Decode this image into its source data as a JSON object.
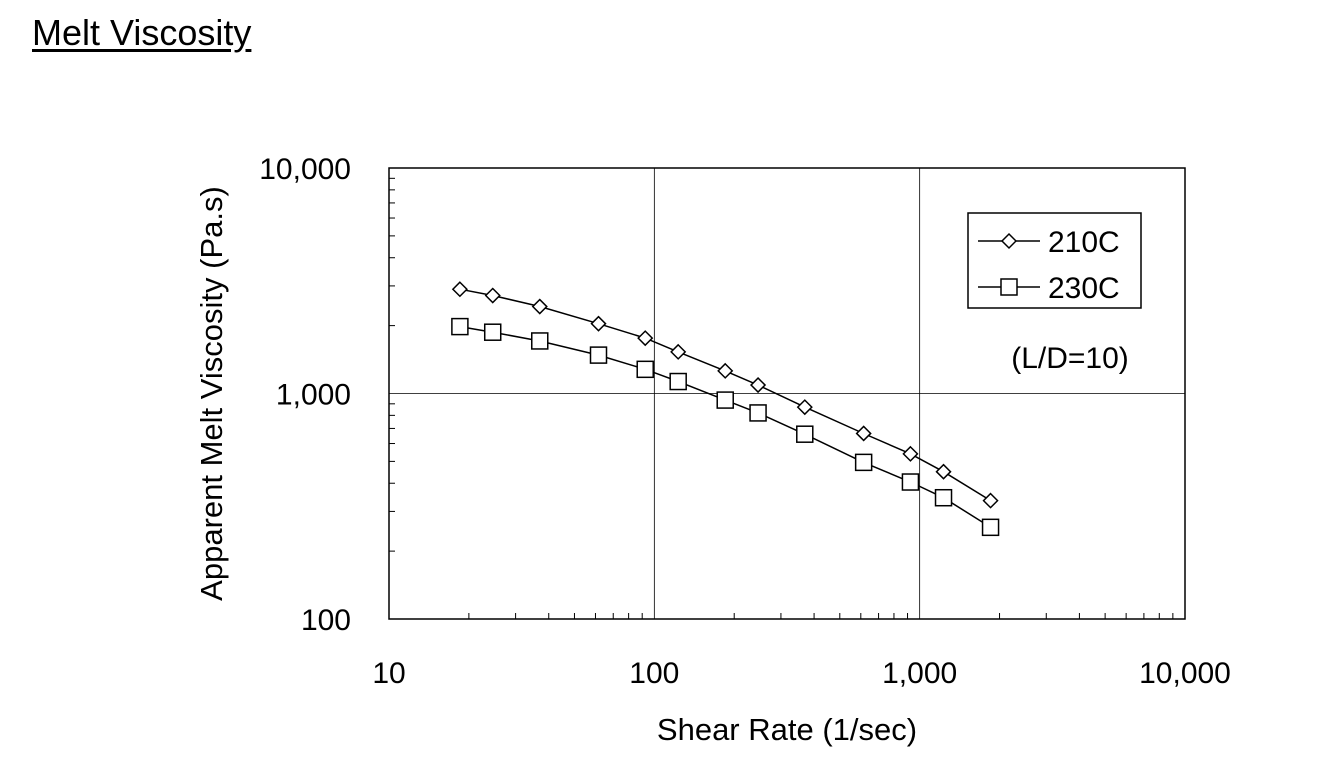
{
  "page": {
    "title": "Melt Viscosity"
  },
  "chart_data": {
    "type": "line",
    "xlabel": "Shear Rate (1/sec)",
    "ylabel": "Apparent Melt Viscosity (Pa.s)",
    "xscale": "log",
    "yscale": "log",
    "xlim": [
      10,
      10000
    ],
    "ylim": [
      100,
      10000
    ],
    "x_ticks": [
      {
        "value": 10,
        "label": "10"
      },
      {
        "value": 100,
        "label": "100"
      },
      {
        "value": 1000,
        "label": "1,000"
      },
      {
        "value": 10000,
        "label": "10,000"
      }
    ],
    "y_ticks": [
      {
        "value": 100,
        "label": "100"
      },
      {
        "value": 1000,
        "label": "1,000"
      },
      {
        "value": 10000,
        "label": "10,000"
      }
    ],
    "grid": "major",
    "legend_position": "top-right",
    "annotation": "(L/D=10)",
    "line_color": "#000000",
    "series": [
      {
        "name": "210C",
        "marker": "diamond",
        "points": [
          {
            "x": 18.5,
            "y": 2900
          },
          {
            "x": 24.6,
            "y": 2720
          },
          {
            "x": 37,
            "y": 2430
          },
          {
            "x": 61.6,
            "y": 2040
          },
          {
            "x": 92.4,
            "y": 1760
          },
          {
            "x": 123,
            "y": 1530
          },
          {
            "x": 185,
            "y": 1260
          },
          {
            "x": 246,
            "y": 1090
          },
          {
            "x": 369,
            "y": 870
          },
          {
            "x": 615,
            "y": 665
          },
          {
            "x": 923,
            "y": 540
          },
          {
            "x": 1230,
            "y": 450
          },
          {
            "x": 1850,
            "y": 335
          }
        ]
      },
      {
        "name": "230C",
        "marker": "square",
        "points": [
          {
            "x": 18.5,
            "y": 1980
          },
          {
            "x": 24.6,
            "y": 1870
          },
          {
            "x": 37,
            "y": 1710
          },
          {
            "x": 61.6,
            "y": 1480
          },
          {
            "x": 92.4,
            "y": 1280
          },
          {
            "x": 123,
            "y": 1130
          },
          {
            "x": 185,
            "y": 935
          },
          {
            "x": 246,
            "y": 820
          },
          {
            "x": 369,
            "y": 660
          },
          {
            "x": 615,
            "y": 495
          },
          {
            "x": 923,
            "y": 405
          },
          {
            "x": 1230,
            "y": 345
          },
          {
            "x": 1850,
            "y": 255
          }
        ]
      }
    ]
  }
}
